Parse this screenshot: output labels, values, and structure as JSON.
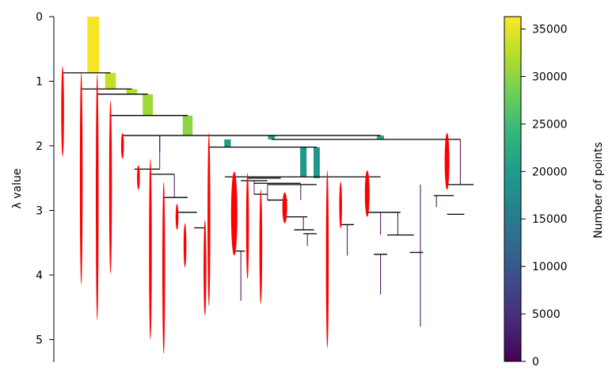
{
  "chart_data": {
    "type": "dendrogram",
    "ylabel": "λ value",
    "ylim": [
      0,
      5.35
    ],
    "yticks": [
      0,
      1,
      2,
      3,
      4,
      5
    ],
    "colorbar": {
      "label": "Number of points",
      "colormap": "viridis",
      "range": [
        0,
        36300
      ],
      "ticks": [
        0,
        5000,
        10000,
        15000,
        20000,
        25000,
        30000,
        35000
      ],
      "stops": [
        "#440154",
        "#482878",
        "#3e4989",
        "#31688e",
        "#26828e",
        "#1f9e89",
        "#35b779",
        "#6ece58",
        "#b5de2b",
        "#fde725"
      ]
    },
    "branches": [
      {
        "x": 0.29,
        "y1": 0.0,
        "y2": 0.87,
        "n": 36000
      },
      {
        "x": 0.42,
        "y1": 0.87,
        "y2": 1.12,
        "n": 33000
      },
      {
        "x": 0.58,
        "y1": 1.12,
        "y2": 1.2,
        "n": 32000
      },
      {
        "x": 0.7,
        "y1": 1.2,
        "y2": 1.53,
        "n": 31000
      },
      {
        "x": 1.0,
        "y1": 1.53,
        "y2": 1.84,
        "n": 30000
      },
      {
        "x": 1.63,
        "y1": 1.84,
        "y2": 1.9,
        "n": 21000
      },
      {
        "x": 2.45,
        "y1": 1.84,
        "y2": 1.9,
        "n": 21500
      },
      {
        "x": 1.3,
        "y1": 1.9,
        "y2": 2.02,
        "n": 20000
      },
      {
        "x": 0.79,
        "y1": 1.84,
        "y2": 2.1,
        "n": 3000
      },
      {
        "x": 1.87,
        "y1": 2.02,
        "y2": 2.48,
        "n": 19500
      },
      {
        "x": 1.97,
        "y1": 2.02,
        "y2": 2.5,
        "n": 19000
      },
      {
        "x": 3.05,
        "y1": 1.9,
        "y2": 2.6,
        "n": 400
      },
      {
        "x": 2.75,
        "y1": 2.6,
        "y2": 4.8,
        "n": 300
      }
    ],
    "splits": [
      {
        "y": 0.87,
        "x1": 0.06,
        "x2": 0.42
      },
      {
        "y": 1.12,
        "x1": 0.2,
        "x2": 0.58
      },
      {
        "y": 1.2,
        "x1": 0.32,
        "x2": 0.7
      },
      {
        "y": 1.53,
        "x1": 0.42,
        "x2": 1.0
      },
      {
        "y": 1.84,
        "x1": 0.51,
        "x2": 2.45
      },
      {
        "y": 1.9,
        "x1": 1.63,
        "x2": 3.05
      },
      {
        "y": 2.02,
        "x1": 1.16,
        "x2": 1.97
      },
      {
        "y": 2.36,
        "x1": 0.6,
        "x2": 0.79
      },
      {
        "y": 2.44,
        "x1": 0.72,
        "x2": 0.9
      },
      {
        "y": 2.48,
        "x1": 1.28,
        "x2": 2.45
      },
      {
        "y": 2.5,
        "x1": 1.45,
        "x2": 1.7
      },
      {
        "y": 2.54,
        "x1": 1.4,
        "x2": 1.6
      },
      {
        "y": 2.58,
        "x1": 1.5,
        "x2": 1.85
      },
      {
        "y": 2.6,
        "x1": 1.6,
        "x2": 1.97
      },
      {
        "y": 2.6,
        "x1": 2.95,
        "x2": 3.15
      },
      {
        "y": 2.75,
        "x1": 1.5,
        "x2": 1.6
      },
      {
        "y": 2.77,
        "x1": 2.85,
        "x2": 3.0
      },
      {
        "y": 2.8,
        "x1": 0.82,
        "x2": 1.0
      },
      {
        "y": 2.84,
        "x1": 1.6,
        "x2": 1.75
      },
      {
        "y": 3.03,
        "x1": 0.92,
        "x2": 1.07
      },
      {
        "y": 3.03,
        "x1": 2.35,
        "x2": 2.6
      },
      {
        "y": 3.06,
        "x1": 2.95,
        "x2": 3.08
      },
      {
        "y": 3.1,
        "x1": 1.73,
        "x2": 1.9
      },
      {
        "y": 3.22,
        "x1": 2.15,
        "x2": 2.25
      },
      {
        "y": 3.27,
        "x1": 1.05,
        "x2": 1.13
      },
      {
        "y": 3.3,
        "x1": 1.8,
        "x2": 1.95
      },
      {
        "y": 3.36,
        "x1": 1.87,
        "x2": 1.97
      },
      {
        "y": 3.38,
        "x1": 2.5,
        "x2": 2.7
      },
      {
        "y": 3.63,
        "x1": 1.35,
        "x2": 1.43
      },
      {
        "y": 3.65,
        "x1": 2.67,
        "x2": 2.77
      },
      {
        "y": 3.68,
        "x1": 2.4,
        "x2": 2.5
      }
    ],
    "thin_lines": [
      {
        "x": 0.79,
        "y1": 1.84,
        "y2": 2.36,
        "n": 3000
      },
      {
        "x": 0.9,
        "y1": 2.44,
        "y2": 2.8,
        "n": 1500
      },
      {
        "x": 1.6,
        "y1": 2.6,
        "y2": 2.84,
        "n": 3500
      },
      {
        "x": 1.5,
        "y1": 2.54,
        "y2": 2.75,
        "n": 3000
      },
      {
        "x": 1.85,
        "y1": 2.6,
        "y2": 2.84,
        "n": 500
      },
      {
        "x": 1.87,
        "y1": 3.1,
        "y2": 3.3,
        "n": 500
      },
      {
        "x": 1.9,
        "y1": 3.36,
        "y2": 3.55,
        "n": 400
      },
      {
        "x": 1.4,
        "y1": 3.63,
        "y2": 4.4,
        "n": 300
      },
      {
        "x": 2.2,
        "y1": 3.22,
        "y2": 3.7,
        "n": 500
      },
      {
        "x": 2.45,
        "y1": 3.03,
        "y2": 3.38,
        "n": 500
      },
      {
        "x": 2.58,
        "y1": 3.03,
        "y2": 3.38,
        "n": 500
      },
      {
        "x": 2.45,
        "y1": 3.68,
        "y2": 4.3,
        "n": 300
      },
      {
        "x": 2.87,
        "y1": 2.77,
        "y2": 2.95,
        "n": 300
      }
    ],
    "selected_clusters": [
      {
        "x": 0.06,
        "y1": 0.77,
        "y2": 2.17,
        "w": 3.5
      },
      {
        "x": 0.2,
        "y1": 0.87,
        "y2": 4.15,
        "w": 3.5
      },
      {
        "x": 0.32,
        "y1": 0.89,
        "y2": 4.7,
        "w": 3.5
      },
      {
        "x": 0.42,
        "y1": 1.3,
        "y2": 3.98,
        "w": 3.5
      },
      {
        "x": 0.51,
        "y1": 1.8,
        "y2": 2.2,
        "w": 3.5
      },
      {
        "x": 0.63,
        "y1": 2.3,
        "y2": 2.68,
        "w": 3.5
      },
      {
        "x": 0.72,
        "y1": 2.2,
        "y2": 5.0,
        "w": 3.5
      },
      {
        "x": 0.82,
        "y1": 2.56,
        "y2": 5.22,
        "w": 3.5
      },
      {
        "x": 0.92,
        "y1": 2.9,
        "y2": 3.3,
        "w": 3.5
      },
      {
        "x": 0.98,
        "y1": 3.2,
        "y2": 3.88,
        "w": 3.5
      },
      {
        "x": 1.13,
        "y1": 3.15,
        "y2": 4.63,
        "w": 3.5
      },
      {
        "x": 1.16,
        "y1": 1.8,
        "y2": 4.48,
        "w": 3.5
      },
      {
        "x": 1.35,
        "y1": 2.4,
        "y2": 3.7,
        "w": 8
      },
      {
        "x": 1.45,
        "y1": 2.42,
        "y2": 4.06,
        "w": 3.5
      },
      {
        "x": 1.55,
        "y1": 2.68,
        "y2": 4.45,
        "w": 3.5
      },
      {
        "x": 1.73,
        "y1": 2.72,
        "y2": 3.2,
        "w": 6
      },
      {
        "x": 2.05,
        "y1": 2.38,
        "y2": 5.13,
        "w": 3.5
      },
      {
        "x": 2.15,
        "y1": 2.56,
        "y2": 3.28,
        "w": 3.5
      },
      {
        "x": 2.35,
        "y1": 2.38,
        "y2": 3.1,
        "w": 6
      },
      {
        "x": 2.95,
        "y1": 1.8,
        "y2": 2.68,
        "w": 6
      }
    ]
  }
}
